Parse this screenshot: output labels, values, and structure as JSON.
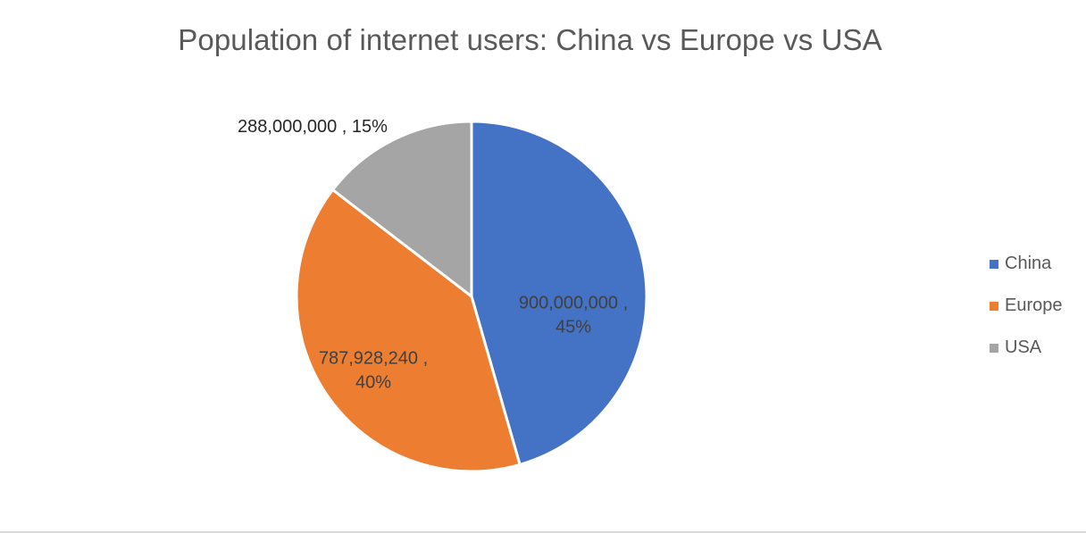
{
  "chart_data": {
    "type": "pie",
    "title": "Population of internet users: China vs Europe vs USA",
    "categories": [
      "China",
      "Europe",
      "USA"
    ],
    "values": [
      900000000,
      787928240,
      288000000
    ],
    "percentages": [
      45,
      40,
      15
    ],
    "colors": [
      "#4472c4",
      "#ed7d31",
      "#a5a5a5"
    ],
    "data_labels": [
      {
        "lines": [
          "900,000,000 ,",
          "45%"
        ],
        "placement": "inside",
        "color": "#404040"
      },
      {
        "lines": [
          "787,928,240 ,",
          "40%"
        ],
        "placement": "inside",
        "color": "#404040"
      },
      {
        "lines": [
          "288,000,000 , 15%"
        ],
        "placement": "outside",
        "color": "#262626"
      }
    ],
    "legend": {
      "position": "right",
      "items": [
        "China",
        "Europe",
        "USA"
      ]
    }
  }
}
